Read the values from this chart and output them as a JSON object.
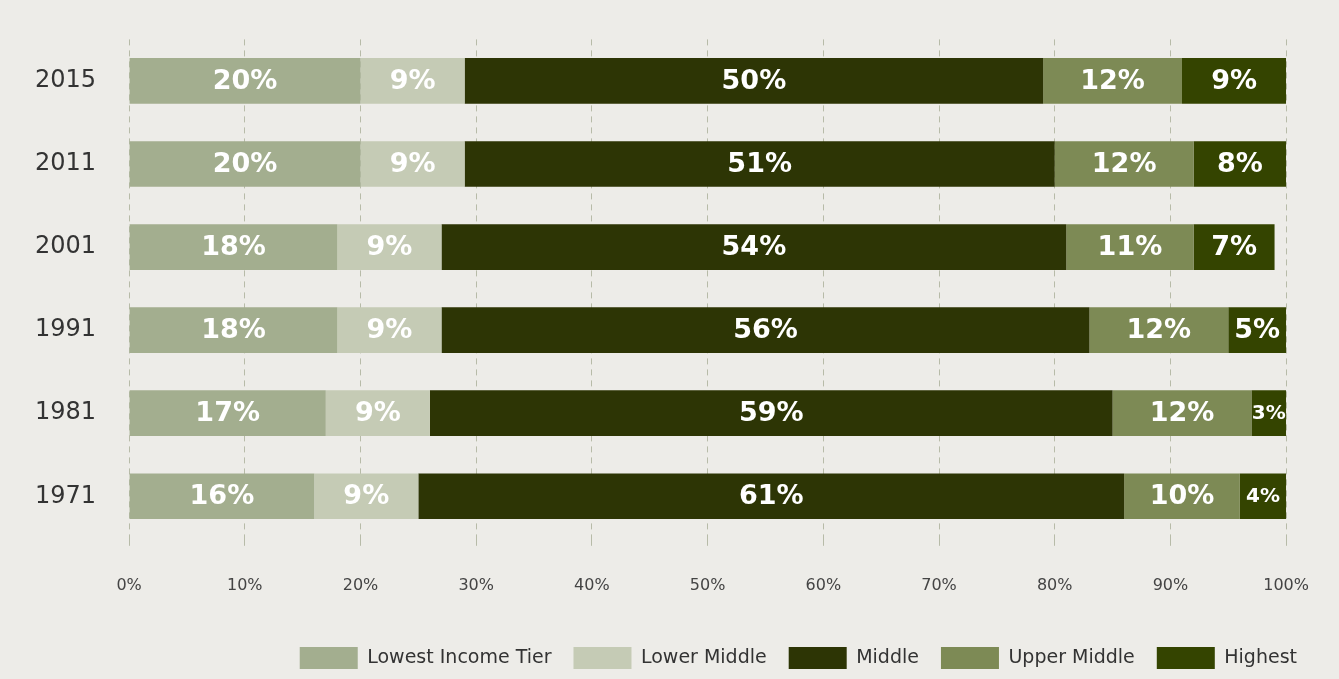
{
  "chart_data": {
    "type": "bar",
    "orientation": "horizontal",
    "stacked": true,
    "categories": [
      "2015",
      "2011",
      "2001",
      "1991",
      "1981",
      "1971"
    ],
    "series": [
      {
        "name": "Lowest Income Tier",
        "color": "#a3ae8f",
        "values": [
          20,
          20,
          18,
          18,
          17,
          16
        ],
        "value_labels": [
          "20%",
          "20%",
          "18%",
          "18%",
          "17%",
          "16%"
        ]
      },
      {
        "name": "Lower Middle",
        "color": "#c5cbb5",
        "values": [
          9,
          9,
          9,
          9,
          9,
          9
        ],
        "value_labels": [
          "9%",
          "9%",
          "9%",
          "9%",
          "9%",
          "9%"
        ]
      },
      {
        "name": "Middle",
        "color": "#2d3505",
        "values": [
          50,
          51,
          54,
          56,
          59,
          61
        ],
        "value_labels": [
          "50%",
          "51%",
          "54%",
          "56%",
          "59%",
          "61%"
        ]
      },
      {
        "name": "Upper Middle",
        "color": "#7d8a55",
        "values": [
          12,
          12,
          11,
          12,
          12,
          10
        ],
        "value_labels": [
          "12%",
          "12%",
          "11%",
          "12%",
          "12%",
          "10%"
        ]
      },
      {
        "name": "Highest",
        "color": "#344400",
        "values": [
          9,
          8,
          7,
          5,
          3,
          4
        ],
        "value_labels": [
          "9%",
          "8%",
          "7%",
          "5%",
          "3%",
          "4%"
        ]
      }
    ],
    "xlim": [
      0,
      100
    ],
    "xticks": [
      {
        "value": 0,
        "label": "0%"
      },
      {
        "value": 10,
        "label": "10%"
      },
      {
        "value": 20,
        "label": "20%"
      },
      {
        "value": 30,
        "label": "30%"
      },
      {
        "value": 40,
        "label": "40%"
      },
      {
        "value": 50,
        "label": "50%"
      },
      {
        "value": 60,
        "label": "60%"
      },
      {
        "value": 70,
        "label": "70%"
      },
      {
        "value": 80,
        "label": "80%"
      },
      {
        "value": 90,
        "label": "90%"
      },
      {
        "value": 100,
        "label": "100%"
      }
    ],
    "grid": "x",
    "legend": "bottom"
  }
}
